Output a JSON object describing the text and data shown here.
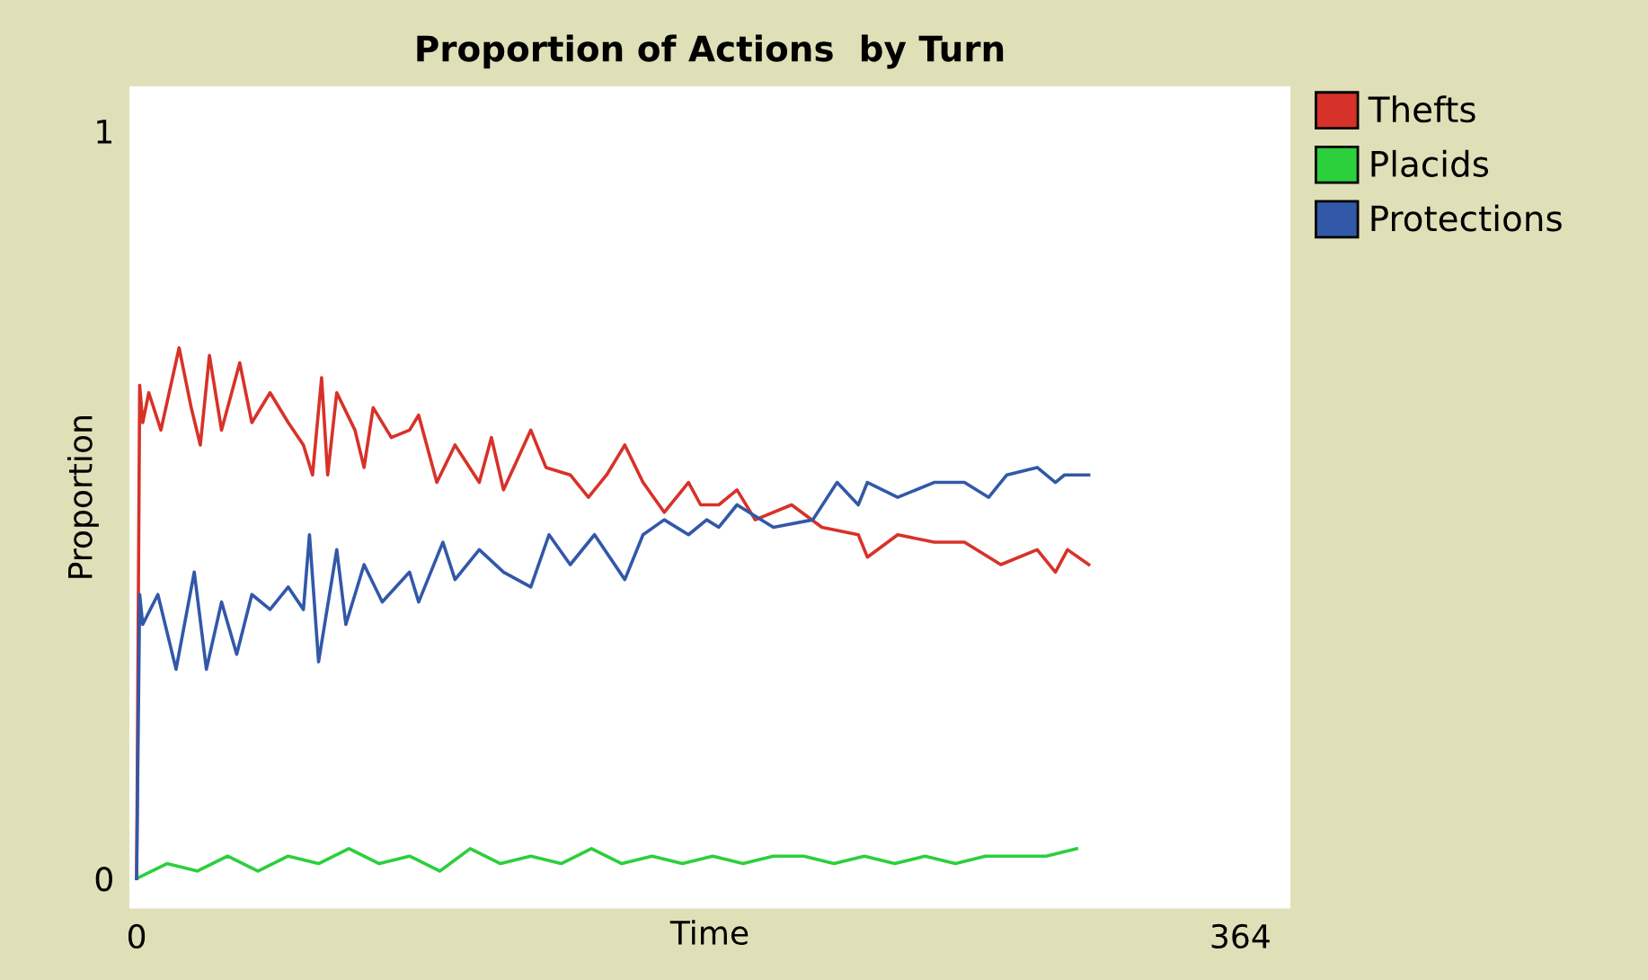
{
  "chart_data": {
    "type": "line",
    "title": "Proportion of Actions  by Turn",
    "xlabel": "Time",
    "ylabel": "Proportion",
    "xlim": [
      -2.4,
      380.5
    ],
    "ylim": [
      -0.04,
      1.06
    ],
    "xticks": [
      0,
      364
    ],
    "yticks": [
      0,
      1
    ],
    "grid": false,
    "legend": "top right",
    "line_style": "solid",
    "marker": "none",
    "series": [
      {
        "name": "Thefts",
        "color": "#d73229",
        "x": [
          0,
          1,
          2,
          4,
          8,
          14,
          18,
          21,
          24,
          28,
          34,
          38,
          44,
          50,
          55,
          58,
          61,
          63,
          66,
          72,
          75,
          78,
          84,
          90,
          93,
          99,
          105,
          113,
          117,
          121,
          130,
          135,
          143,
          149,
          155,
          161,
          167,
          174,
          182,
          186,
          192,
          198,
          204,
          216,
          226,
          238,
          241,
          251,
          263,
          273,
          285,
          297,
          303,
          307,
          314
        ],
        "values": [
          0,
          0.66,
          0.61,
          0.65,
          0.6,
          0.71,
          0.63,
          0.58,
          0.7,
          0.6,
          0.69,
          0.61,
          0.65,
          0.61,
          0.58,
          0.54,
          0.67,
          0.54,
          0.65,
          0.6,
          0.55,
          0.63,
          0.59,
          0.6,
          0.62,
          0.53,
          0.58,
          0.53,
          0.59,
          0.52,
          0.6,
          0.55,
          0.54,
          0.51,
          0.54,
          0.58,
          0.53,
          0.49,
          0.53,
          0.5,
          0.5,
          0.52,
          0.48,
          0.5,
          0.47,
          0.46,
          0.43,
          0.46,
          0.45,
          0.45,
          0.42,
          0.44,
          0.41,
          0.44,
          0.42
        ]
      },
      {
        "name": "Placids",
        "color": "#2ccf3c",
        "x": [
          0,
          10,
          20,
          30,
          40,
          50,
          60,
          70,
          80,
          90,
          100,
          110,
          120,
          130,
          140,
          150,
          160,
          170,
          180,
          190,
          200,
          210,
          220,
          230,
          240,
          250,
          260,
          270,
          280,
          290,
          300,
          310
        ],
        "values": [
          0,
          0.02,
          0.01,
          0.03,
          0.01,
          0.03,
          0.02,
          0.04,
          0.02,
          0.03,
          0.01,
          0.04,
          0.02,
          0.03,
          0.02,
          0.04,
          0.02,
          0.03,
          0.02,
          0.03,
          0.02,
          0.03,
          0.03,
          0.02,
          0.03,
          0.02,
          0.03,
          0.02,
          0.03,
          0.03,
          0.03,
          0.04
        ]
      },
      {
        "name": "Protections",
        "color": "#3258a8",
        "x": [
          0,
          1,
          2,
          7,
          13,
          19,
          23,
          28,
          33,
          38,
          44,
          50,
          55,
          57,
          60,
          66,
          69,
          75,
          81,
          90,
          93,
          101,
          105,
          113,
          121,
          130,
          136,
          143,
          151,
          161,
          167,
          174,
          182,
          188,
          192,
          198,
          210,
          223,
          231,
          238,
          241,
          251,
          263,
          273,
          281,
          287,
          297,
          303,
          306,
          314
        ],
        "values": [
          0,
          0.38,
          0.34,
          0.38,
          0.28,
          0.41,
          0.28,
          0.37,
          0.3,
          0.38,
          0.36,
          0.39,
          0.36,
          0.46,
          0.29,
          0.44,
          0.34,
          0.42,
          0.37,
          0.41,
          0.37,
          0.45,
          0.4,
          0.44,
          0.41,
          0.39,
          0.46,
          0.42,
          0.46,
          0.4,
          0.46,
          0.48,
          0.46,
          0.48,
          0.47,
          0.5,
          0.47,
          0.48,
          0.53,
          0.5,
          0.53,
          0.51,
          0.53,
          0.53,
          0.51,
          0.54,
          0.55,
          0.53,
          0.54,
          0.54
        ]
      }
    ]
  }
}
